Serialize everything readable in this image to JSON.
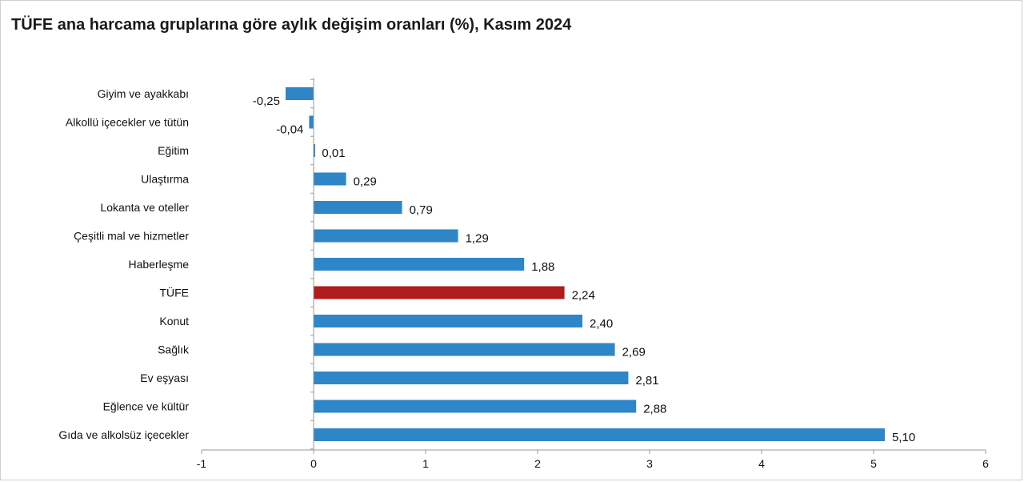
{
  "chart_data": {
    "type": "bar",
    "orientation": "horizontal",
    "title": "TÜFE ana harcama gruplarına göre aylık değişim oranları (%), Kasım 2024",
    "categories": [
      "Giyim ve ayakkabı",
      "Alkollü içecekler ve tütün",
      "Eğitim",
      "Ulaştırma",
      "Lokanta ve oteller",
      "Çeşitli mal ve hizmetler",
      "Haberleşme",
      "TÜFE",
      "Konut",
      "Sağlık",
      "Ev eşyası",
      "Eğlence ve kültür",
      "Gıda ve alkolsüz içecekler"
    ],
    "values": [
      -0.25,
      -0.04,
      0.01,
      0.29,
      0.79,
      1.29,
      1.88,
      2.24,
      2.4,
      2.69,
      2.81,
      2.88,
      5.1
    ],
    "value_labels": [
      "-0,25",
      "-0,04",
      "0,01",
      "0,29",
      "0,79",
      "1,29",
      "1,88",
      "2,24",
      "2,40",
      "2,69",
      "2,81",
      "2,88",
      "5,10"
    ],
    "highlight_category": "TÜFE",
    "colors": {
      "bar": "#2e86c8",
      "highlight": "#b01c1c",
      "axis": "#9a9a9a"
    },
    "xlim": [
      -1,
      6
    ],
    "x_ticks": [
      "-1",
      "0",
      "1",
      "2",
      "3",
      "4",
      "5",
      "6"
    ],
    "grid": false,
    "legend": "none"
  }
}
